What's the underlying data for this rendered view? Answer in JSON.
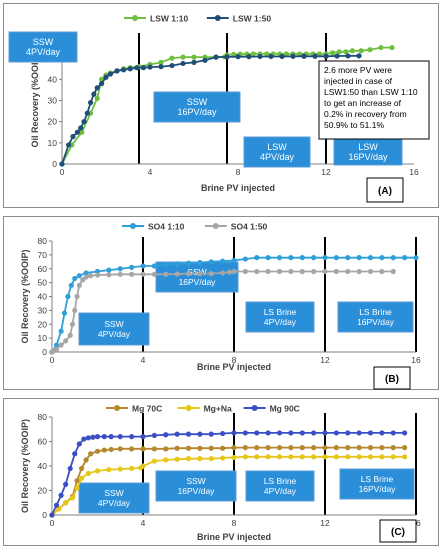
{
  "chart_data": [
    {
      "type": "line",
      "panel": "(A)",
      "xlabel": "Brine PV injected",
      "ylabel": "Oil Recovery (%OOIP)",
      "xlim": [
        0,
        16
      ],
      "ylim": [
        0,
        60
      ],
      "xticks": [
        0,
        4,
        8,
        12,
        16
      ],
      "yticks": [
        0,
        10,
        20,
        30,
        40,
        50,
        60
      ],
      "grid": false,
      "legend_position": "top",
      "stage_lines": [
        3.5,
        7.5,
        12
      ],
      "series": [
        {
          "name": "LSW 1:10",
          "color": "#6fbf3f",
          "x": [
            0,
            0.45,
            0.9,
            1.3,
            1.6,
            1.8,
            2.0,
            2.2,
            2.5,
            2.8,
            3.1,
            3.5,
            4.0,
            4.5,
            5.0,
            5.5,
            6.0,
            6.5,
            7.0,
            7.4,
            7.5,
            7.8,
            8.1,
            8.4,
            8.7,
            9.0,
            9.3,
            9.6,
            9.9,
            10.2,
            10.5,
            10.8,
            11.1,
            11.4,
            11.7,
            12.0,
            12.3,
            12.6,
            12.9,
            13.2,
            13.6,
            14.0,
            14.5,
            15.0
          ],
          "y": [
            0,
            9,
            15,
            24,
            31,
            40,
            42,
            43,
            44,
            45,
            45.5,
            46,
            47,
            48,
            50,
            50.5,
            50.5,
            50.5,
            50.5,
            50.6,
            51.5,
            51.8,
            51.9,
            51.9,
            52,
            52,
            52,
            52,
            52,
            52,
            52,
            52,
            52,
            52,
            52,
            52,
            52.5,
            53,
            53,
            53.5,
            53.5,
            54,
            55,
            55
          ]
        },
        {
          "name": "LSW 1:50",
          "color": "#1f4e79",
          "x": [
            0,
            0.3,
            0.5,
            0.7,
            0.85,
            1.0,
            1.15,
            1.3,
            1.45,
            1.6,
            1.8,
            2.0,
            2.2,
            2.5,
            2.8,
            3.1,
            3.4,
            3.7,
            4.0,
            4.5,
            5.0,
            5.5,
            6.0,
            6.5,
            7.0,
            7.5,
            8.0,
            8.5,
            9.0,
            9.5,
            10.0,
            10.5,
            11.0,
            11.5,
            12.0,
            12.5,
            13.0,
            13.5
          ],
          "y": [
            0,
            9,
            13,
            15,
            17,
            20,
            24,
            29,
            33,
            36,
            38,
            41,
            42.5,
            44,
            44.5,
            45,
            45.5,
            45.5,
            45.8,
            46,
            46.5,
            47.5,
            48,
            49,
            50.5,
            50.6,
            50.7,
            50.7,
            50.8,
            50.8,
            50.8,
            50.9,
            50.9,
            50.9,
            50.9,
            51,
            51.05,
            51.1
          ]
        }
      ],
      "stage_labels": [
        "SSW\n4PV/day",
        "SSW\n16PV/day",
        "LSW\n4PV/day",
        "LSW\n16PV/day"
      ],
      "annotation": "2.6 more PV were injected in case of LSW1:50 than LSW 1:10 to get an increase of 0.2% in recovery from 50.9% to 51.1%"
    },
    {
      "type": "line",
      "panel": "(B)",
      "xlabel": "Brine PV injected",
      "ylabel": "Oil Recovery (%OOIP)",
      "xlim": [
        0,
        16
      ],
      "ylim": [
        0,
        80
      ],
      "xticks": [
        0,
        4,
        8,
        12,
        16
      ],
      "yticks": [
        0,
        10,
        20,
        30,
        40,
        50,
        60,
        70,
        80
      ],
      "grid": false,
      "legend_position": "top",
      "stage_lines": [
        4,
        8,
        12,
        16
      ],
      "series": [
        {
          "name": "SO4 1:10",
          "color": "#2e9fd8",
          "x": [
            0,
            0.2,
            0.4,
            0.55,
            0.7,
            0.85,
            1.0,
            1.2,
            1.5,
            2.0,
            2.5,
            3.0,
            3.5,
            4.0,
            4.5,
            5.0,
            5.5,
            6.0,
            6.5,
            7.0,
            7.5,
            8.0,
            8.5,
            9.0,
            9.5,
            10.0,
            10.5,
            11.0,
            11.5,
            12.0,
            12.5,
            13.0,
            13.5,
            14.0,
            14.5,
            15.0,
            15.5,
            16.0
          ],
          "y": [
            0,
            5,
            15,
            28,
            40,
            48,
            53,
            55,
            57,
            58,
            59,
            60,
            61,
            62,
            62,
            63,
            63.5,
            64,
            64.5,
            65,
            65.5,
            66,
            67,
            68,
            68,
            68,
            68,
            68,
            68,
            68,
            68,
            68,
            68,
            68,
            68,
            68,
            68,
            68
          ]
        },
        {
          "name": "SO4 1:50",
          "color": "#a6a6a6",
          "x": [
            0,
            0.2,
            0.4,
            0.6,
            0.8,
            0.9,
            1.0,
            1.1,
            1.2,
            1.35,
            1.5,
            1.7,
            2.0,
            2.5,
            3.0,
            3.5,
            4.0,
            4.5,
            5.0,
            5.5,
            6.0,
            6.5,
            7.0,
            7.5,
            7.8,
            8.0,
            8.5,
            9.0,
            9.5,
            10.0,
            10.5,
            11.0,
            11.5,
            12.0,
            12.5,
            13.0,
            13.5,
            14.0,
            14.5,
            15.0
          ],
          "y": [
            0,
            2,
            5,
            8,
            12,
            20,
            30,
            40,
            48,
            52,
            54,
            55,
            55.5,
            55.7,
            56,
            56,
            56,
            56,
            56,
            56.2,
            56.5,
            56.5,
            56.5,
            57,
            57.5,
            58,
            58,
            58,
            58,
            58,
            58,
            58,
            58,
            58,
            58,
            58,
            58,
            58,
            58,
            58
          ]
        }
      ],
      "stage_labels": [
        "SSW\n4PV/day",
        "SSW\n16PV/day",
        "LS Brine\n4PV/day",
        "LS Brine\n16PV/day"
      ]
    },
    {
      "type": "line",
      "panel": "(C)",
      "xlabel": "Brine PV injected",
      "ylabel": "Oil Recovery (%OOIP)",
      "xlim": [
        0,
        16
      ],
      "ylim": [
        0,
        80
      ],
      "xticks": [
        0,
        4,
        8,
        12,
        16
      ],
      "yticks": [
        0,
        20,
        40,
        60,
        80
      ],
      "grid": false,
      "legend_position": "top",
      "stage_lines": [
        4,
        8,
        12,
        16
      ],
      "series": [
        {
          "name": "Mg 70C",
          "color": "#b5872e",
          "x": [
            0,
            0.3,
            0.6,
            0.9,
            1.1,
            1.3,
            1.5,
            1.7,
            2.0,
            2.3,
            2.6,
            3.0,
            3.5,
            4.0,
            4.5,
            5.0,
            5.5,
            6.0,
            6.5,
            7.0,
            7.5,
            8.0,
            8.5,
            9.0,
            9.5,
            10.0,
            10.5,
            11.0,
            11.5,
            12.0,
            12.5,
            13.0,
            13.5,
            14.0,
            14.5,
            15.0,
            15.5
          ],
          "y": [
            0,
            5,
            10,
            15,
            28,
            38,
            45,
            50,
            52,
            53,
            53.5,
            54,
            54,
            54,
            54,
            54,
            54.5,
            54.5,
            54.5,
            54.5,
            54.5,
            55,
            55,
            55,
            55,
            55,
            55,
            55,
            55,
            55,
            55,
            55,
            55,
            55,
            55,
            55,
            55
          ]
        },
        {
          "name": "Mg+Na",
          "color": "#e6c619",
          "x": [
            0,
            0.3,
            0.6,
            0.9,
            1.1,
            1.3,
            1.6,
            2.0,
            2.5,
            3.0,
            3.5,
            3.9,
            4.0,
            4.5,
            5.0,
            5.5,
            6.0,
            6.5,
            7.0,
            7.5,
            8.0,
            8.5,
            9.0,
            9.5,
            10.0,
            10.5,
            11.0,
            11.5,
            12.0,
            12.5,
            13.0,
            13.5,
            14.0,
            14.5,
            15.0,
            15.5
          ],
          "y": [
            0,
            5,
            10,
            14,
            22,
            30,
            34,
            36,
            37,
            37.5,
            38,
            38.5,
            40,
            44,
            45,
            45.5,
            46,
            46,
            46,
            46.5,
            47,
            47.5,
            47.5,
            47.5,
            47.5,
            47.5,
            47.5,
            47.5,
            47.5,
            47.5,
            47.5,
            47.5,
            47.5,
            47.5,
            47.5,
            47.5
          ]
        },
        {
          "name": "Mg 90C",
          "color": "#3a4fc4",
          "x": [
            0,
            0.2,
            0.4,
            0.6,
            0.8,
            1.0,
            1.2,
            1.4,
            1.6,
            1.8,
            2.0,
            2.3,
            2.6,
            3.0,
            3.5,
            4.0,
            4.5,
            5.0,
            5.5,
            6.0,
            6.5,
            7.0,
            7.5,
            8.0,
            8.5,
            9.0,
            9.5,
            10.0,
            10.5,
            11.0,
            11.5,
            12.0,
            12.5,
            13.0,
            13.5,
            14.0,
            14.5,
            15.0,
            15.5
          ],
          "y": [
            0,
            8,
            16,
            25,
            38,
            50,
            58,
            62,
            63,
            63.5,
            64,
            64,
            64,
            64,
            64,
            64,
            65,
            65.5,
            66,
            66,
            66,
            66,
            66.5,
            67,
            67,
            67,
            67,
            67,
            67,
            67,
            67,
            67,
            67,
            67,
            67,
            67,
            67,
            67,
            67
          ]
        }
      ],
      "stage_labels": [
        "SSW\n4PV/day",
        "SSW\n16PV/day",
        "LS Brine\n4PV/day",
        "LS Brine\n16PV/day"
      ]
    }
  ]
}
